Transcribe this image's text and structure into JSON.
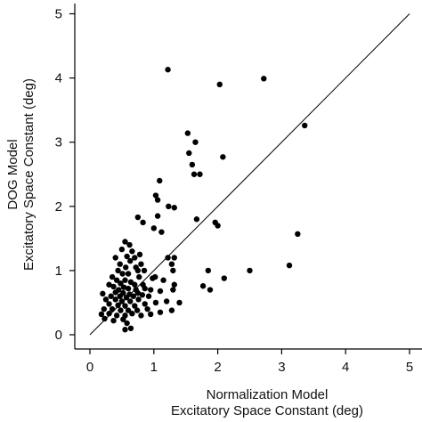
{
  "chart_data": {
    "type": "scatter",
    "title": "",
    "xlabel_line1": "Normalization Model",
    "xlabel_line2": "Excitatory Space Constant (deg)",
    "ylabel_line1": "DOG Model",
    "ylabel_line2": "Excitatory Space Constant (deg)",
    "xlim": [
      0,
      5
    ],
    "ylim": [
      0,
      5
    ],
    "xticks": [
      "0",
      "1",
      "2",
      "3",
      "4",
      "5"
    ],
    "yticks": [
      "0",
      "1",
      "2",
      "3",
      "4",
      "5"
    ],
    "grid": false,
    "reference_line": {
      "x": [
        0,
        5
      ],
      "y": [
        0,
        5
      ]
    },
    "point_color": "#000000",
    "points": [
      [
        1.22,
        4.13
      ],
      [
        2.03,
        3.9
      ],
      [
        2.72,
        3.99
      ],
      [
        3.36,
        3.26
      ],
      [
        1.53,
        3.14
      ],
      [
        1.65,
        3.0
      ],
      [
        1.55,
        2.83
      ],
      [
        1.6,
        2.65
      ],
      [
        2.08,
        2.77
      ],
      [
        1.63,
        2.5
      ],
      [
        1.72,
        2.5
      ],
      [
        1.09,
        2.4
      ],
      [
        1.03,
        2.17
      ],
      [
        1.06,
        2.1
      ],
      [
        1.23,
        2.0
      ],
      [
        1.32,
        1.98
      ],
      [
        0.75,
        1.83
      ],
      [
        0.83,
        1.75
      ],
      [
        1.06,
        1.85
      ],
      [
        1.67,
        1.8
      ],
      [
        1.0,
        1.66
      ],
      [
        1.12,
        1.6
      ],
      [
        1.96,
        1.75
      ],
      [
        2.0,
        1.7
      ],
      [
        3.25,
        1.57
      ],
      [
        0.55,
        1.45
      ],
      [
        0.62,
        1.4
      ],
      [
        0.5,
        1.33
      ],
      [
        0.66,
        1.3
      ],
      [
        0.78,
        1.25
      ],
      [
        0.4,
        1.2
      ],
      [
        0.58,
        1.22
      ],
      [
        0.7,
        1.2
      ],
      [
        0.63,
        1.15
      ],
      [
        0.8,
        1.1
      ],
      [
        0.47,
        1.1
      ],
      [
        0.56,
        1.05
      ],
      [
        0.72,
        1.05
      ],
      [
        0.75,
        1.0
      ],
      [
        0.85,
        1.0
      ],
      [
        0.44,
        1.0
      ],
      [
        0.51,
        0.95
      ],
      [
        0.6,
        0.95
      ],
      [
        0.35,
        0.9
      ],
      [
        0.77,
        0.9
      ],
      [
        1.22,
        1.2
      ],
      [
        1.32,
        1.2
      ],
      [
        1.28,
        1.1
      ],
      [
        1.3,
        1.0
      ],
      [
        1.85,
        1.0
      ],
      [
        2.5,
        1.0
      ],
      [
        3.12,
        1.08
      ],
      [
        1.02,
        0.9
      ],
      [
        0.98,
        0.88
      ],
      [
        1.15,
        0.85
      ],
      [
        0.42,
        0.85
      ],
      [
        0.55,
        0.85
      ],
      [
        0.64,
        0.82
      ],
      [
        0.48,
        0.8
      ],
      [
        0.3,
        0.78
      ],
      [
        0.7,
        0.78
      ],
      [
        0.83,
        0.78
      ],
      [
        0.37,
        0.75
      ],
      [
        0.53,
        0.74
      ],
      [
        0.45,
        0.7
      ],
      [
        0.6,
        0.72
      ],
      [
        0.72,
        0.7
      ],
      [
        0.86,
        0.72
      ],
      [
        0.95,
        0.7
      ],
      [
        1.32,
        0.78
      ],
      [
        1.3,
        0.7
      ],
      [
        0.4,
        0.66
      ],
      [
        0.52,
        0.65
      ],
      [
        0.62,
        0.63
      ],
      [
        0.75,
        0.65
      ],
      [
        1.1,
        0.68
      ],
      [
        0.33,
        0.6
      ],
      [
        0.2,
        0.64
      ],
      [
        0.47,
        0.6
      ],
      [
        0.57,
        0.58
      ],
      [
        0.68,
        0.6
      ],
      [
        0.82,
        0.62
      ],
      [
        0.92,
        0.6
      ],
      [
        1.77,
        0.76
      ],
      [
        1.88,
        0.7
      ],
      [
        2.1,
        0.88
      ],
      [
        0.25,
        0.55
      ],
      [
        0.4,
        0.55
      ],
      [
        0.5,
        0.52
      ],
      [
        0.63,
        0.52
      ],
      [
        0.76,
        0.55
      ],
      [
        0.3,
        0.48
      ],
      [
        0.44,
        0.46
      ],
      [
        0.55,
        0.45
      ],
      [
        0.7,
        0.45
      ],
      [
        0.86,
        0.48
      ],
      [
        1.03,
        0.5
      ],
      [
        1.2,
        0.52
      ],
      [
        1.4,
        0.5
      ],
      [
        0.22,
        0.4
      ],
      [
        0.35,
        0.4
      ],
      [
        0.48,
        0.38
      ],
      [
        0.6,
        0.38
      ],
      [
        0.74,
        0.38
      ],
      [
        0.9,
        0.4
      ],
      [
        1.1,
        0.35
      ],
      [
        1.28,
        0.38
      ],
      [
        0.18,
        0.32
      ],
      [
        0.3,
        0.33
      ],
      [
        0.42,
        0.3
      ],
      [
        0.55,
        0.3
      ],
      [
        0.66,
        0.33
      ],
      [
        0.8,
        0.3
      ],
      [
        0.95,
        0.32
      ],
      [
        0.23,
        0.25
      ],
      [
        0.37,
        0.22
      ],
      [
        0.52,
        0.24
      ],
      [
        0.58,
        0.18
      ],
      [
        0.55,
        0.08
      ],
      [
        0.64,
        0.1
      ]
    ]
  }
}
